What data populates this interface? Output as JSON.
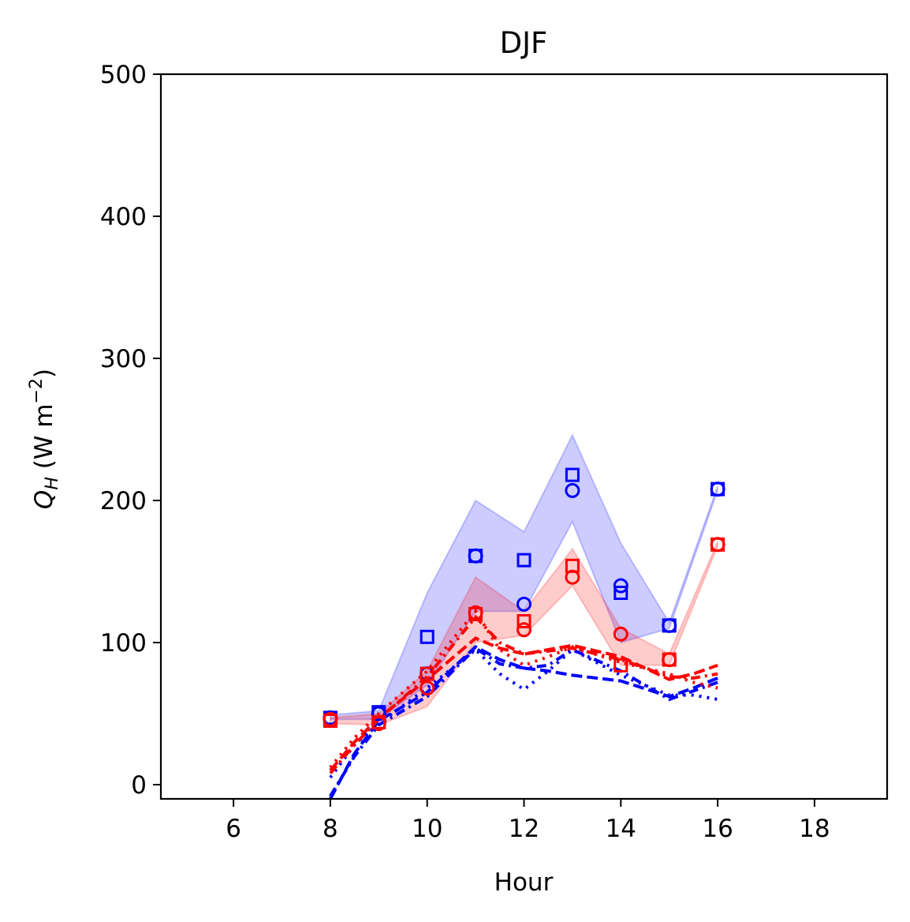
{
  "chart_data": {
    "type": "line",
    "title": "DJF",
    "xlabel": "Hour",
    "ylabel_main": "Q",
    "ylabel_sub": "H",
    "ylabel_unit": " (W m",
    "ylabel_exp": "−2",
    "ylabel_close": ")",
    "xlim": [
      4.5,
      19.5
    ],
    "ylim": [
      -10,
      500
    ],
    "xticks": [
      6,
      8,
      10,
      12,
      14,
      16,
      18
    ],
    "yticks": [
      0,
      100,
      200,
      300,
      400,
      500
    ],
    "grid": false,
    "colors": {
      "blue": "#0000ff",
      "red": "#ff0000"
    },
    "bands": [
      {
        "color": "#0000ff",
        "x": [
          8,
          9,
          10,
          11,
          12,
          13,
          14,
          15,
          16
        ],
        "lower": [
          46,
          46,
          70,
          122,
          122,
          185,
          100,
          110,
          207
        ],
        "upper": [
          49,
          52,
          135,
          200,
          178,
          246,
          170,
          114,
          210
        ]
      },
      {
        "color": "#ff0000",
        "x": [
          8,
          9,
          10,
          11,
          12,
          13,
          14,
          15,
          16
        ],
        "lower": [
          43,
          42,
          55,
          100,
          105,
          140,
          84,
          84,
          168
        ],
        "upper": [
          47,
          50,
          80,
          146,
          122,
          166,
          110,
          92,
          171
        ]
      }
    ],
    "markers": [
      {
        "shape": "circle",
        "color": "#0000ff",
        "x": [
          8,
          9,
          10,
          11,
          12,
          13,
          14,
          15,
          16
        ],
        "values": [
          47,
          50,
          78,
          161,
          127,
          207,
          140,
          112,
          208
        ]
      },
      {
        "shape": "square",
        "color": "#0000ff",
        "x": [
          8,
          9,
          10,
          11,
          12,
          13,
          14,
          15,
          16
        ],
        "values": [
          47,
          51,
          104,
          161,
          158,
          218,
          135,
          112,
          208
        ]
      },
      {
        "shape": "circle",
        "color": "#ff0000",
        "x": [
          8,
          9,
          10,
          11,
          12,
          13,
          14,
          15,
          16
        ],
        "values": [
          46,
          43,
          68,
          121,
          109,
          146,
          106,
          88,
          169
        ]
      },
      {
        "shape": "square",
        "color": "#ff0000",
        "x": [
          8,
          9,
          10,
          11,
          12,
          13,
          14,
          15,
          16
        ],
        "values": [
          45,
          44,
          78,
          120,
          115,
          154,
          84,
          88,
          169
        ]
      }
    ],
    "series": [
      {
        "style": "dashed",
        "color": "#0000ff",
        "x": [
          8,
          8.5,
          9,
          10,
          11,
          11.5,
          12,
          12.5,
          13,
          14,
          15,
          15.5,
          16
        ],
        "values": [
          -10,
          22,
          45,
          65,
          97,
          88,
          82,
          80,
          77,
          73,
          62,
          68,
          75
        ]
      },
      {
        "style": "dotted",
        "color": "#0000ff",
        "x": [
          8,
          8.5,
          9,
          10,
          11,
          11.5,
          12,
          12.5,
          13,
          14,
          15,
          15.5,
          16
        ],
        "values": [
          5,
          28,
          43,
          68,
          95,
          78,
          67,
          80,
          95,
          77,
          63,
          63,
          60
        ]
      },
      {
        "style": "dashdot",
        "color": "#0000ff",
        "x": [
          8,
          8.5,
          9,
          10,
          11,
          11.5,
          12,
          12.5,
          13,
          14,
          15,
          15.5,
          16
        ],
        "values": [
          -8,
          20,
          42,
          62,
          96,
          85,
          82,
          84,
          95,
          80,
          60,
          66,
          72
        ]
      },
      {
        "style": "dashed",
        "color": "#ff0000",
        "x": [
          8,
          8.5,
          9,
          10,
          11,
          11.5,
          12,
          12.5,
          13,
          14,
          15,
          15.5,
          16
        ],
        "values": [
          10,
          30,
          47,
          74,
          103,
          96,
          92,
          95,
          98,
          90,
          74,
          78,
          84
        ]
      },
      {
        "style": "dotted",
        "color": "#ff0000",
        "x": [
          8,
          8.5,
          9,
          10,
          11,
          11.5,
          12,
          12.5,
          13,
          14,
          15,
          15.5,
          16
        ],
        "values": [
          12,
          33,
          50,
          80,
          122,
          95,
          84,
          90,
          97,
          86,
          78,
          72,
          68
        ]
      },
      {
        "style": "dashdot",
        "color": "#ff0000",
        "x": [
          8,
          8.5,
          9,
          10,
          11,
          11.5,
          12,
          12.5,
          13,
          14,
          15,
          15.5,
          16
        ],
        "values": [
          8,
          28,
          46,
          76,
          118,
          100,
          92,
          94,
          96,
          88,
          76,
          75,
          78
        ]
      }
    ]
  }
}
